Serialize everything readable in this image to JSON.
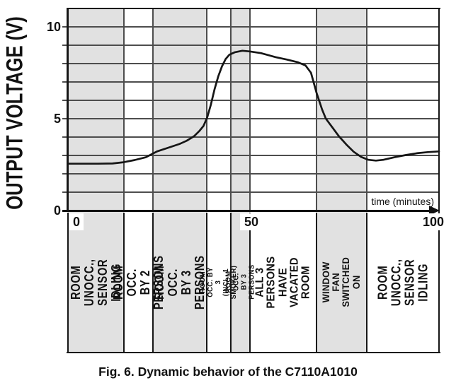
{
  "figure": {
    "caption": "Fig. 6. Dynamic behavior of the C7110A1010"
  },
  "chart_data": {
    "type": "line",
    "title": "Fig. 6. Dynamic behavior of the C7110A1010",
    "xlabel": "time (minutes)",
    "ylabel": "OUTPUT VOLTAGE (V)",
    "xlim": [
      0,
      100
    ],
    "ylim": [
      0,
      11
    ],
    "x_ticks": [
      0,
      50,
      100
    ],
    "x_tick_labels": [
      "0",
      "50",
      "100"
    ],
    "y_ticks": [
      0,
      5,
      10
    ],
    "y_tick_labels": [
      "0",
      "5",
      "10"
    ],
    "gridlines": "horizontal, every 1 V; vertical lines at phase boundaries",
    "legend": "none",
    "series": [
      {
        "name": "C7110A1010 output voltage",
        "points": [
          [
            0,
            2.55
          ],
          [
            4,
            2.55
          ],
          [
            8,
            2.55
          ],
          [
            12,
            2.56
          ],
          [
            15,
            2.63
          ],
          [
            18,
            2.75
          ],
          [
            21,
            2.9
          ],
          [
            24,
            3.22
          ],
          [
            27,
            3.42
          ],
          [
            30,
            3.62
          ],
          [
            32,
            3.8
          ],
          [
            34,
            4.05
          ],
          [
            35.5,
            4.35
          ],
          [
            36.5,
            4.6
          ],
          [
            37.5,
            5.05
          ],
          [
            38.5,
            5.75
          ],
          [
            39.5,
            6.6
          ],
          [
            40.5,
            7.3
          ],
          [
            41.5,
            7.85
          ],
          [
            42.5,
            8.25
          ],
          [
            43.5,
            8.48
          ],
          [
            45,
            8.62
          ],
          [
            47,
            8.7
          ],
          [
            49,
            8.66
          ],
          [
            52,
            8.57
          ],
          [
            56,
            8.35
          ],
          [
            59,
            8.22
          ],
          [
            62,
            8.07
          ],
          [
            64,
            7.9
          ],
          [
            65.5,
            7.5
          ],
          [
            67,
            6.4
          ],
          [
            68.5,
            5.5
          ],
          [
            69.5,
            5.0
          ],
          [
            71,
            4.6
          ],
          [
            73,
            4.05
          ],
          [
            75,
            3.6
          ],
          [
            77,
            3.2
          ],
          [
            79,
            2.92
          ],
          [
            81,
            2.76
          ],
          [
            83,
            2.72
          ],
          [
            85,
            2.76
          ],
          [
            88,
            2.9
          ],
          [
            91,
            3.02
          ],
          [
            94,
            3.12
          ],
          [
            97,
            3.18
          ],
          [
            100,
            3.22
          ]
        ]
      }
    ],
    "phases": [
      {
        "label": "ROOM UNOCC.,\nSENSOR IDLING",
        "t_start": 0,
        "t_end": 15.1,
        "shaded": true,
        "size": "large"
      },
      {
        "label": "ROOM OCC.\nBY 2 PERSONS",
        "t_start": 15.1,
        "t_end": 22.9,
        "shaded": false,
        "size": "large"
      },
      {
        "label": "ROOM OCC.\nBY 3 PERSONS",
        "t_start": 22.9,
        "t_end": 37.4,
        "shaded": true,
        "size": "large"
      },
      {
        "label": "ROOM OCC. BY 3\n(INCL. 1  SMOKER)",
        "t_start": 37.4,
        "t_end": 43.9,
        "shaded": false,
        "size": "xsmall"
      },
      {
        "label": "ROOM OCC.\nBY 3 PERSONS",
        "t_start": 43.9,
        "t_end": 49.0,
        "shaded": true,
        "size": "xsmall"
      },
      {
        "label": "ALL 3 PERSONS\nHAVE VACATED\nROOM",
        "t_start": 49.0,
        "t_end": 67.0,
        "shaded": false,
        "size": "medium"
      },
      {
        "label": "WINDOW FAN\nSWITCHED ON",
        "t_start": 67.0,
        "t_end": 80.5,
        "shaded": true,
        "size": "small"
      },
      {
        "label": "ROOM UNOCC.,\nSENSOR IDLING",
        "t_start": 80.5,
        "t_end": 100,
        "shaded": false,
        "size": "large"
      }
    ]
  }
}
